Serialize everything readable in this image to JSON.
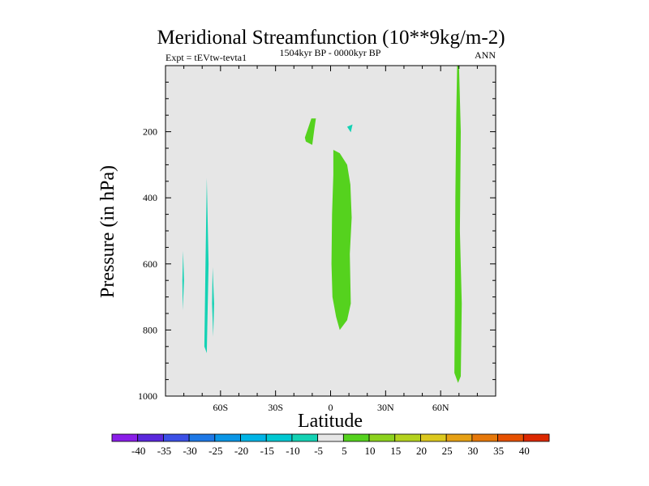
{
  "chart_data": {
    "type": "heatmap",
    "title": "Meridional Streamfunction (10**9kg/m-2)",
    "left_label": "Expt = tEVtw-tevta1",
    "center_label": "1504kyr BP - 0000kyr BP",
    "right_label": "ANN",
    "xlabel": "Latitude",
    "ylabel": "Pressure (in hPa)",
    "xlim": [
      -90,
      90
    ],
    "ylim": [
      1000,
      0
    ],
    "x_ticks": [
      {
        "value": -60,
        "label": "60S"
      },
      {
        "value": -30,
        "label": "30S"
      },
      {
        "value": 0,
        "label": "0"
      },
      {
        "value": 30,
        "label": "30N"
      },
      {
        "value": 60,
        "label": "60N"
      }
    ],
    "y_ticks": [
      {
        "value": 200,
        "label": "200"
      },
      {
        "value": 400,
        "label": "400"
      },
      {
        "value": 600,
        "label": "600"
      },
      {
        "value": 800,
        "label": "800"
      },
      {
        "value": 1000,
        "label": "1000"
      }
    ],
    "background_color": "#e6e6e6",
    "colorbar": {
      "levels": [
        -40,
        -35,
        -30,
        -25,
        -20,
        -15,
        -10,
        -5,
        5,
        10,
        15,
        20,
        25,
        30,
        35,
        40
      ],
      "labels": [
        "-40",
        "-35",
        "-30",
        "-25",
        "-20",
        "-15",
        "-10",
        "-5",
        "5",
        "10",
        "15",
        "20",
        "25",
        "30",
        "35",
        "40"
      ],
      "colors": [
        "#8a1ee8",
        "#5a28dc",
        "#3c50e6",
        "#1e78e6",
        "#0a96e6",
        "#00b4e6",
        "#00c8d2",
        "#14d2b4",
        "#e6e6e6",
        "#55d21e",
        "#8cd21e",
        "#b4d21e",
        "#dcc81e",
        "#e6a014",
        "#e6780a",
        "#e65000",
        "#dc2800"
      ]
    },
    "regions": [
      {
        "name": "contour-neg-70S",
        "value": -7.5,
        "color": "#14d2b4",
        "points": [
          [
            -67.5,
            340
          ],
          [
            -68.2,
            600
          ],
          [
            -68.8,
            850
          ],
          [
            -67.5,
            870
          ],
          [
            -66.5,
            600
          ]
        ]
      },
      {
        "name": "contour-neg-80S",
        "value": -7.5,
        "color": "#14d2b4",
        "points": [
          [
            -80.4,
            560
          ],
          [
            -80.8,
            650
          ],
          [
            -80.6,
            740
          ],
          [
            -79.9,
            650
          ]
        ]
      },
      {
        "name": "contour-neg-65S",
        "value": -7.5,
        "color": "#14d2b4",
        "points": [
          [
            -64.3,
            610
          ],
          [
            -64.6,
            720
          ],
          [
            -64.0,
            820
          ],
          [
            -63.5,
            720
          ]
        ]
      },
      {
        "name": "contour-neg-10N",
        "value": -7.5,
        "color": "#14d2b4",
        "points": [
          [
            9.0,
            185
          ],
          [
            12.0,
            178
          ],
          [
            11.0,
            202
          ]
        ]
      },
      {
        "name": "contour-pos-15S",
        "value": 7.5,
        "color": "#55d21e",
        "points": [
          [
            -14.0,
            218
          ],
          [
            -10.5,
            160
          ],
          [
            -8.0,
            160
          ],
          [
            -8.8,
            190
          ],
          [
            -10.0,
            240
          ],
          [
            -13.5,
            230
          ]
        ]
      },
      {
        "name": "contour-pos-eq",
        "value": 7.5,
        "color": "#55d21e",
        "points": [
          [
            1.5,
            255
          ],
          [
            5.0,
            265
          ],
          [
            9.0,
            300
          ],
          [
            10.8,
            360
          ],
          [
            11.5,
            460
          ],
          [
            10.5,
            570
          ],
          [
            11.0,
            720
          ],
          [
            9.0,
            770
          ],
          [
            5.0,
            800
          ],
          [
            3.0,
            760
          ],
          [
            1.0,
            700
          ],
          [
            0.5,
            600
          ],
          [
            0.8,
            450
          ],
          [
            1.5,
            330
          ]
        ]
      },
      {
        "name": "contour-pos-70N",
        "value": 7.5,
        "color": "#55d21e",
        "points": [
          [
            69.0,
            0
          ],
          [
            70.0,
            0
          ],
          [
            71.0,
            200
          ],
          [
            70.5,
            500
          ],
          [
            71.5,
            720
          ],
          [
            71.0,
            940
          ],
          [
            69.5,
            960
          ],
          [
            67.5,
            930
          ],
          [
            67.8,
            700
          ],
          [
            68.0,
            400
          ],
          [
            68.5,
            150
          ]
        ]
      }
    ]
  }
}
